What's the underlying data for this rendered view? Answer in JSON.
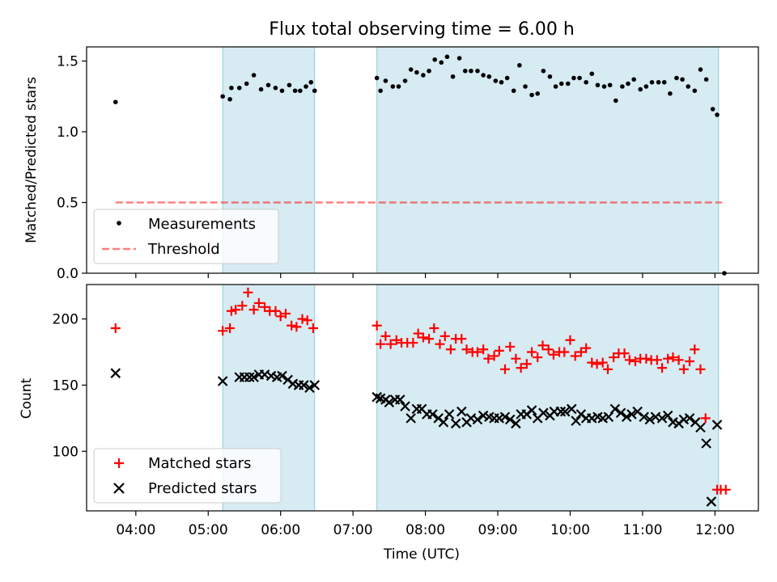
{
  "title": "Flux total observing time = 6.00 h",
  "colors": {
    "shade": "#add8e6",
    "measure": "#000000",
    "threshold": "#ff0000",
    "matched": "#ff0000",
    "predicted": "#000000"
  },
  "chart_data": [
    {
      "type": "scatter",
      "panel": "top",
      "title": "Flux total observing time = 6.00 h",
      "xlabel": "",
      "ylabel": "Matched/Predicted stars",
      "xlim": [
        3.32,
        12.6
      ],
      "ylim": [
        0.0,
        1.6
      ],
      "yticks": [
        0.0,
        0.5,
        1.0,
        1.5
      ],
      "ytick_labels": [
        "0.0",
        "0.5",
        "1.0",
        "1.5"
      ],
      "shaded_intervals": [
        [
          5.2,
          6.47
        ],
        [
          7.33,
          12.05
        ]
      ],
      "legend_position": "lower-left",
      "legend": [
        "Measurements",
        "Threshold"
      ],
      "threshold": {
        "name": "Threshold",
        "value": 0.5,
        "x_range": [
          3.72,
          12.1
        ]
      },
      "series": [
        {
          "name": "Measurements",
          "x": [
            3.72,
            5.2,
            5.3,
            5.32,
            5.43,
            5.53,
            5.63,
            5.73,
            5.83,
            5.93,
            6.02,
            6.12,
            6.2,
            6.27,
            6.35,
            6.42,
            6.47,
            7.33,
            7.38,
            7.45,
            7.55,
            7.63,
            7.72,
            7.8,
            7.88,
            7.97,
            8.05,
            8.13,
            8.22,
            8.3,
            8.38,
            8.47,
            8.55,
            8.63,
            8.72,
            8.8,
            8.88,
            8.97,
            9.05,
            9.13,
            9.22,
            9.3,
            9.38,
            9.47,
            9.55,
            9.63,
            9.72,
            9.8,
            9.88,
            9.97,
            10.05,
            10.13,
            10.22,
            10.3,
            10.38,
            10.47,
            10.55,
            10.63,
            10.72,
            10.8,
            10.88,
            10.97,
            11.05,
            11.13,
            11.22,
            11.3,
            11.38,
            11.47,
            11.55,
            11.63,
            11.72,
            11.8,
            11.88,
            11.97,
            12.03,
            12.13
          ],
          "y": [
            1.21,
            1.25,
            1.23,
            1.31,
            1.31,
            1.34,
            1.4,
            1.3,
            1.33,
            1.31,
            1.29,
            1.33,
            1.29,
            1.29,
            1.32,
            1.35,
            1.29,
            1.38,
            1.29,
            1.36,
            1.32,
            1.32,
            1.36,
            1.44,
            1.42,
            1.4,
            1.43,
            1.51,
            1.49,
            1.53,
            1.39,
            1.52,
            1.43,
            1.43,
            1.43,
            1.4,
            1.39,
            1.36,
            1.35,
            1.38,
            1.29,
            1.47,
            1.32,
            1.26,
            1.27,
            1.43,
            1.39,
            1.32,
            1.34,
            1.34,
            1.38,
            1.38,
            1.35,
            1.41,
            1.33,
            1.32,
            1.33,
            1.22,
            1.32,
            1.34,
            1.37,
            1.3,
            1.32,
            1.35,
            1.35,
            1.35,
            1.27,
            1.38,
            1.37,
            1.32,
            1.29,
            1.44,
            1.37,
            1.16,
            1.12,
            0.0
          ]
        }
      ]
    },
    {
      "type": "scatter",
      "panel": "bottom",
      "xlabel": "Time (UTC)",
      "ylabel": "Count",
      "xlim": [
        3.32,
        12.6
      ],
      "ylim": [
        55,
        226
      ],
      "yticks": [
        100,
        150,
        200
      ],
      "ytick_labels": [
        "100",
        "150",
        "200"
      ],
      "xticks": [
        4,
        5,
        6,
        7,
        8,
        9,
        10,
        11,
        12
      ],
      "xtick_labels": [
        "04:00",
        "05:00",
        "06:00",
        "07:00",
        "08:00",
        "09:00",
        "10:00",
        "11:00",
        "12:00"
      ],
      "shaded_intervals": [
        [
          5.2,
          6.47
        ],
        [
          7.33,
          12.05
        ]
      ],
      "legend_position": "lower-left",
      "legend": [
        "Matched stars",
        "Predicted stars"
      ],
      "series": [
        {
          "name": "Matched stars",
          "marker": "+",
          "x": [
            3.72,
            5.2,
            5.3,
            5.32,
            5.38,
            5.47,
            5.55,
            5.63,
            5.7,
            5.78,
            5.85,
            5.93,
            6.0,
            6.07,
            6.15,
            6.22,
            6.3,
            6.37,
            6.45,
            7.33,
            7.38,
            7.45,
            7.52,
            7.6,
            7.67,
            7.75,
            7.83,
            7.9,
            7.97,
            8.05,
            8.12,
            8.2,
            8.27,
            8.35,
            8.42,
            8.5,
            8.57,
            8.65,
            8.72,
            8.8,
            8.87,
            8.95,
            9.02,
            9.1,
            9.17,
            9.25,
            9.32,
            9.4,
            9.47,
            9.55,
            9.62,
            9.7,
            9.77,
            9.85,
            9.92,
            10.0,
            10.07,
            10.15,
            10.22,
            10.3,
            10.37,
            10.45,
            10.52,
            10.6,
            10.67,
            10.75,
            10.82,
            10.9,
            10.97,
            11.05,
            11.12,
            11.2,
            11.27,
            11.35,
            11.42,
            11.5,
            11.57,
            11.65,
            11.72,
            11.8,
            11.87,
            12.03,
            12.08,
            12.15
          ],
          "y": [
            193,
            191,
            193,
            206,
            207,
            210,
            220,
            207,
            212,
            209,
            206,
            206,
            202,
            204,
            195,
            194,
            200,
            199,
            193,
            195,
            181,
            187,
            181,
            184,
            182,
            182,
            182,
            189,
            186,
            185,
            193,
            181,
            187,
            177,
            185,
            185,
            177,
            175,
            175,
            177,
            170,
            172,
            176,
            162,
            179,
            170,
            163,
            166,
            175,
            171,
            180,
            177,
            173,
            175,
            175,
            184,
            172,
            175,
            178,
            167,
            166,
            167,
            162,
            171,
            174,
            174,
            169,
            168,
            170,
            170,
            169,
            169,
            163,
            170,
            171,
            169,
            162,
            168,
            177,
            162,
            125,
            71,
            71,
            71
          ]
        },
        {
          "name": "Predicted stars",
          "marker": "x",
          "x": [
            3.72,
            5.2,
            5.43,
            5.5,
            5.57,
            5.63,
            5.7,
            5.78,
            5.87,
            5.95,
            6.02,
            6.1,
            6.17,
            6.25,
            6.32,
            6.4,
            6.47,
            7.33,
            7.38,
            7.45,
            7.5,
            7.58,
            7.65,
            7.72,
            7.8,
            7.88,
            7.95,
            8.02,
            8.1,
            8.18,
            8.25,
            8.33,
            8.42,
            8.5,
            8.57,
            8.63,
            8.72,
            8.8,
            8.88,
            8.95,
            9.02,
            9.1,
            9.17,
            9.25,
            9.32,
            9.4,
            9.47,
            9.55,
            9.63,
            9.72,
            9.78,
            9.87,
            9.93,
            10.02,
            10.08,
            10.15,
            10.22,
            10.3,
            10.38,
            10.45,
            10.53,
            10.62,
            10.7,
            10.78,
            10.85,
            10.93,
            11.02,
            11.1,
            11.18,
            11.27,
            11.35,
            11.42,
            11.5,
            11.57,
            11.65,
            11.73,
            11.8,
            11.88,
            11.95,
            12.03
          ],
          "y": [
            159,
            153,
            156,
            156,
            156,
            156,
            158,
            158,
            157,
            156,
            157,
            154,
            151,
            150,
            150,
            148,
            150,
            141,
            140,
            139,
            137,
            139,
            139,
            134,
            125,
            132,
            132,
            128,
            128,
            125,
            122,
            128,
            121,
            130,
            122,
            125,
            124,
            127,
            126,
            125,
            125,
            126,
            124,
            121,
            128,
            128,
            131,
            125,
            129,
            127,
            130,
            130,
            130,
            132,
            123,
            128,
            125,
            125,
            126,
            125,
            126,
            132,
            129,
            126,
            128,
            130,
            126,
            124,
            126,
            125,
            127,
            122,
            121,
            124,
            125,
            122,
            118,
            106,
            62,
            120
          ]
        }
      ]
    }
  ]
}
